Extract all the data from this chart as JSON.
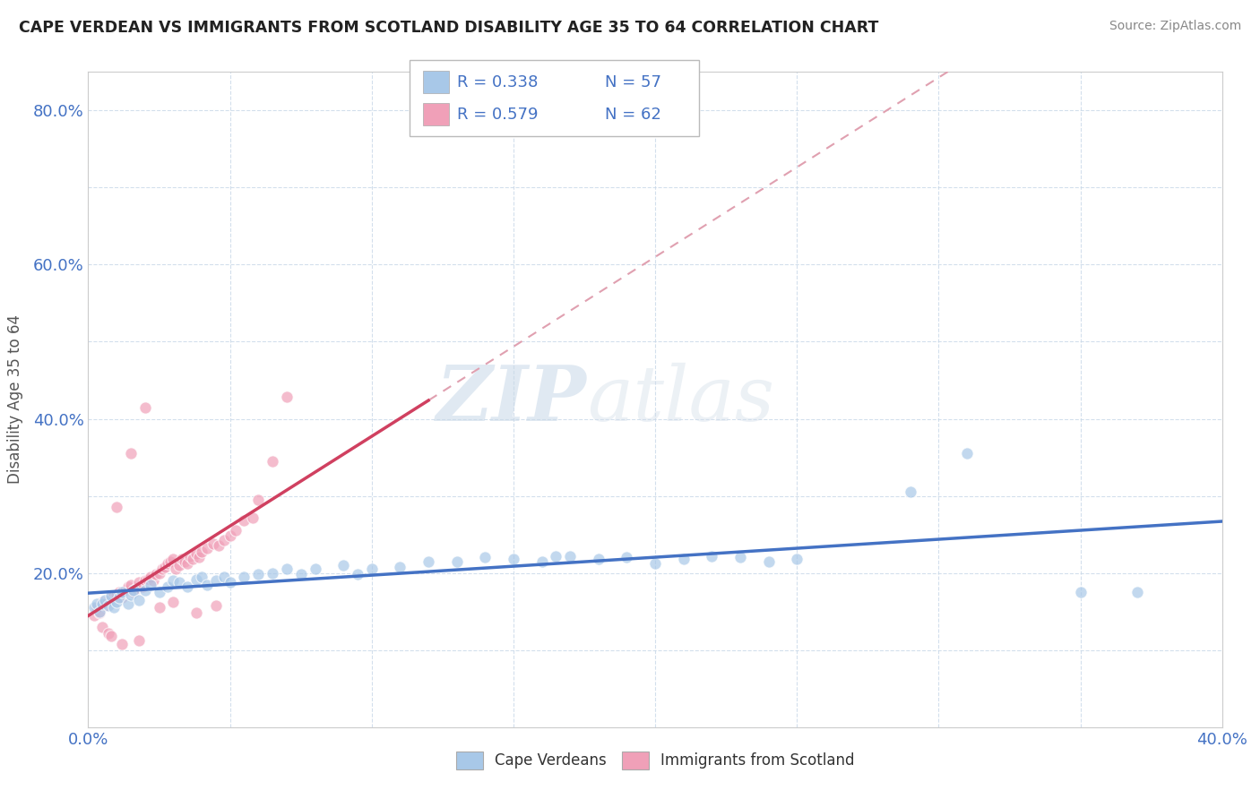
{
  "title": "CAPE VERDEAN VS IMMIGRANTS FROM SCOTLAND DISABILITY AGE 35 TO 64 CORRELATION CHART",
  "source": "Source: ZipAtlas.com",
  "ylabel": "Disability Age 35 to 64",
  "xlim": [
    0.0,
    0.4
  ],
  "ylim": [
    0.0,
    0.85
  ],
  "blue_R": 0.338,
  "blue_N": 57,
  "pink_R": 0.579,
  "pink_N": 62,
  "blue_color": "#a8c8e8",
  "pink_color": "#f0a0b8",
  "blue_line_color": "#4472c4",
  "pink_line_color": "#d04060",
  "pink_dash_color": "#e0a0b0",
  "legend_label_blue": "Cape Verdeans",
  "legend_label_pink": "Immigrants from Scotland",
  "watermark_zip": "ZIP",
  "watermark_atlas": "atlas",
  "blue_scatter_x": [
    0.002,
    0.003,
    0.004,
    0.005,
    0.006,
    0.007,
    0.008,
    0.009,
    0.01,
    0.011,
    0.012,
    0.014,
    0.015,
    0.016,
    0.018,
    0.02,
    0.022,
    0.025,
    0.028,
    0.03,
    0.032,
    0.035,
    0.038,
    0.04,
    0.042,
    0.045,
    0.048,
    0.05,
    0.055,
    0.06,
    0.065,
    0.07,
    0.075,
    0.08,
    0.09,
    0.095,
    0.1,
    0.11,
    0.12,
    0.13,
    0.14,
    0.15,
    0.16,
    0.17,
    0.18,
    0.19,
    0.2,
    0.21,
    0.22,
    0.23,
    0.24,
    0.25,
    0.29,
    0.31,
    0.35,
    0.37,
    0.165
  ],
  "blue_scatter_y": [
    0.155,
    0.16,
    0.15,
    0.16,
    0.165,
    0.158,
    0.17,
    0.155,
    0.162,
    0.168,
    0.175,
    0.16,
    0.172,
    0.178,
    0.165,
    0.178,
    0.185,
    0.175,
    0.182,
    0.19,
    0.188,
    0.182,
    0.192,
    0.195,
    0.185,
    0.19,
    0.195,
    0.188,
    0.195,
    0.198,
    0.2,
    0.205,
    0.198,
    0.205,
    0.21,
    0.198,
    0.205,
    0.208,
    0.215,
    0.215,
    0.22,
    0.218,
    0.215,
    0.222,
    0.218,
    0.22,
    0.212,
    0.218,
    0.222,
    0.22,
    0.215,
    0.218,
    0.305,
    0.355,
    0.175,
    0.175,
    0.222
  ],
  "pink_scatter_x": [
    0.002,
    0.003,
    0.004,
    0.005,
    0.006,
    0.007,
    0.008,
    0.009,
    0.01,
    0.011,
    0.012,
    0.013,
    0.014,
    0.015,
    0.016,
    0.017,
    0.018,
    0.019,
    0.02,
    0.021,
    0.022,
    0.023,
    0.024,
    0.025,
    0.026,
    0.027,
    0.028,
    0.029,
    0.03,
    0.031,
    0.032,
    0.033,
    0.034,
    0.035,
    0.036,
    0.037,
    0.038,
    0.039,
    0.04,
    0.042,
    0.044,
    0.046,
    0.048,
    0.05,
    0.052,
    0.055,
    0.058,
    0.06,
    0.065,
    0.07,
    0.025,
    0.03,
    0.038,
    0.045,
    0.01,
    0.015,
    0.02,
    0.005,
    0.007,
    0.008,
    0.012,
    0.018
  ],
  "pink_scatter_y": [
    0.145,
    0.155,
    0.148,
    0.162,
    0.158,
    0.165,
    0.168,
    0.17,
    0.172,
    0.175,
    0.168,
    0.178,
    0.182,
    0.185,
    0.175,
    0.18,
    0.188,
    0.182,
    0.19,
    0.192,
    0.195,
    0.19,
    0.198,
    0.2,
    0.205,
    0.208,
    0.212,
    0.215,
    0.218,
    0.205,
    0.21,
    0.218,
    0.215,
    0.212,
    0.222,
    0.218,
    0.225,
    0.22,
    0.228,
    0.232,
    0.238,
    0.235,
    0.242,
    0.248,
    0.255,
    0.268,
    0.272,
    0.295,
    0.345,
    0.428,
    0.155,
    0.162,
    0.148,
    0.158,
    0.285,
    0.355,
    0.415,
    0.13,
    0.122,
    0.118,
    0.108,
    0.112
  ]
}
